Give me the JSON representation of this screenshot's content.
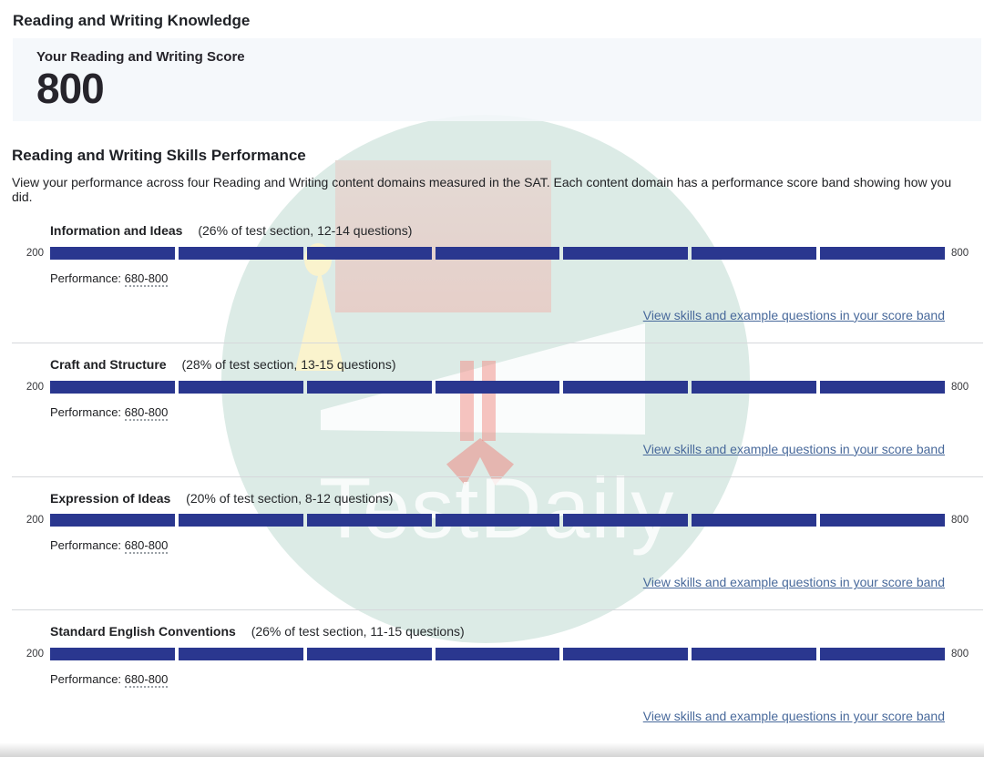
{
  "page": {
    "title": "Reading and Writing Knowledge"
  },
  "score_card": {
    "label": "Your Reading and Writing Score",
    "score": "800"
  },
  "skills": {
    "heading": "Reading and Writing Skills Performance",
    "description": "View your performance across four Reading and Writing content domains measured in the SAT. Each content domain has a performance score band showing how you did.",
    "scale_min": "200",
    "scale_max": "800",
    "performance_label": "Performance:",
    "link_label": "View skills and example questions in your score band",
    "band_segment_count": 7,
    "domains": [
      {
        "name": "Information and Ideas",
        "detail": "(26% of test section, 12-14 questions)",
        "performance_band": "680-800"
      },
      {
        "name": "Craft and Structure",
        "detail": "(28% of test section, 13-15 questions)",
        "performance_band": "680-800"
      },
      {
        "name": "Expression of Ideas",
        "detail": "(20% of test section, 8-12 questions)",
        "performance_band": "680-800"
      },
      {
        "name": "Standard English Conventions",
        "detail": "(26% of test section, 11-15 questions)",
        "performance_band": "680-800"
      }
    ]
  },
  "watermark": {
    "text": "TestDaily"
  },
  "colors": {
    "band_fill": "#2a378f",
    "link": "#48699b",
    "score_card_bg": "#f4f7fa",
    "watermark_circle": "#dcebe6",
    "divider": "#d6d8db"
  }
}
